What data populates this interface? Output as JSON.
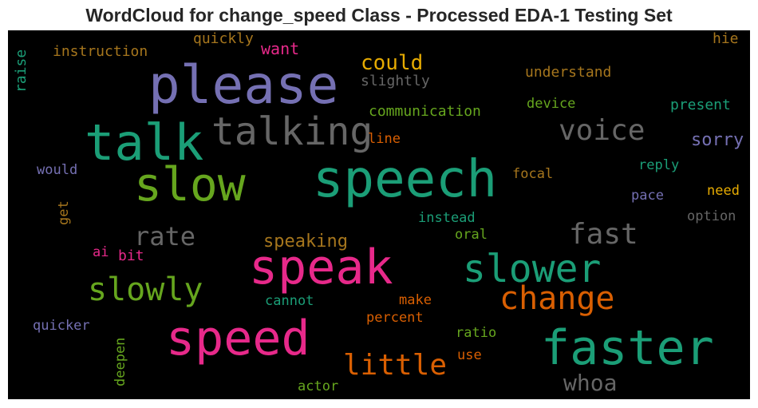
{
  "title": "WordCloud for change_speed Class - Processed EDA-1 Testing Set",
  "colors": {
    "purple": "#7570b3",
    "teal": "#1b9e77",
    "green": "#66a61e",
    "pink": "#e7298a",
    "orange": "#d95f02",
    "gold": "#e6ab02",
    "brown": "#a6761d",
    "gray": "#666666"
  },
  "words": [
    {
      "text": "please",
      "color": "#7570b3"
    },
    {
      "text": "talk",
      "color": "#1b9e77"
    },
    {
      "text": "talking",
      "color": "#666666"
    },
    {
      "text": "slow",
      "color": "#66a61e"
    },
    {
      "text": "speech",
      "color": "#1b9e77"
    },
    {
      "text": "voice",
      "color": "#666666"
    },
    {
      "text": "speak",
      "color": "#e7298a"
    },
    {
      "text": "slower",
      "color": "#1b9e77"
    },
    {
      "text": "speed",
      "color": "#e7298a"
    },
    {
      "text": "faster",
      "color": "#1b9e77"
    },
    {
      "text": "slowly",
      "color": "#66a61e"
    },
    {
      "text": "change",
      "color": "#d95f02"
    },
    {
      "text": "little",
      "color": "#d95f02"
    },
    {
      "text": "rate",
      "color": "#666666"
    },
    {
      "text": "fast",
      "color": "#666666"
    },
    {
      "text": "could",
      "color": "#e6ab02"
    },
    {
      "text": "whoa",
      "color": "#666666"
    },
    {
      "text": "speaking",
      "color": "#a6761d"
    },
    {
      "text": "sorry",
      "color": "#7570b3"
    },
    {
      "text": "want",
      "color": "#e7298a"
    },
    {
      "text": "quickly",
      "color": "#a6761d"
    },
    {
      "text": "instruction",
      "color": "#a6761d"
    },
    {
      "text": "slightly",
      "color": "#666666"
    },
    {
      "text": "understand",
      "color": "#a6761d"
    },
    {
      "text": "communication",
      "color": "#66a61e"
    },
    {
      "text": "device",
      "color": "#66a61e"
    },
    {
      "text": "present",
      "color": "#1b9e77"
    },
    {
      "text": "hie",
      "color": "#a6761d"
    },
    {
      "text": "raise",
      "color": "#1b9e77"
    },
    {
      "text": "line",
      "color": "#d95f02"
    },
    {
      "text": "would",
      "color": "#7570b3"
    },
    {
      "text": "focal",
      "color": "#a6761d"
    },
    {
      "text": "reply",
      "color": "#1b9e77"
    },
    {
      "text": "need",
      "color": "#e6ab02"
    },
    {
      "text": "pace",
      "color": "#7570b3"
    },
    {
      "text": "get",
      "color": "#a6761d"
    },
    {
      "text": "instead",
      "color": "#1b9e77"
    },
    {
      "text": "option",
      "color": "#666666"
    },
    {
      "text": "oral",
      "color": "#66a61e"
    },
    {
      "text": "ai",
      "color": "#e7298a"
    },
    {
      "text": "bit",
      "color": "#e7298a"
    },
    {
      "text": "cannot",
      "color": "#1b9e77"
    },
    {
      "text": "make",
      "color": "#d95f02"
    },
    {
      "text": "quicker",
      "color": "#7570b3"
    },
    {
      "text": "percent",
      "color": "#d95f02"
    },
    {
      "text": "ratio",
      "color": "#66a61e"
    },
    {
      "text": "deepen",
      "color": "#66a61e"
    },
    {
      "text": "use",
      "color": "#d95f02"
    },
    {
      "text": "actor",
      "color": "#66a61e"
    }
  ]
}
